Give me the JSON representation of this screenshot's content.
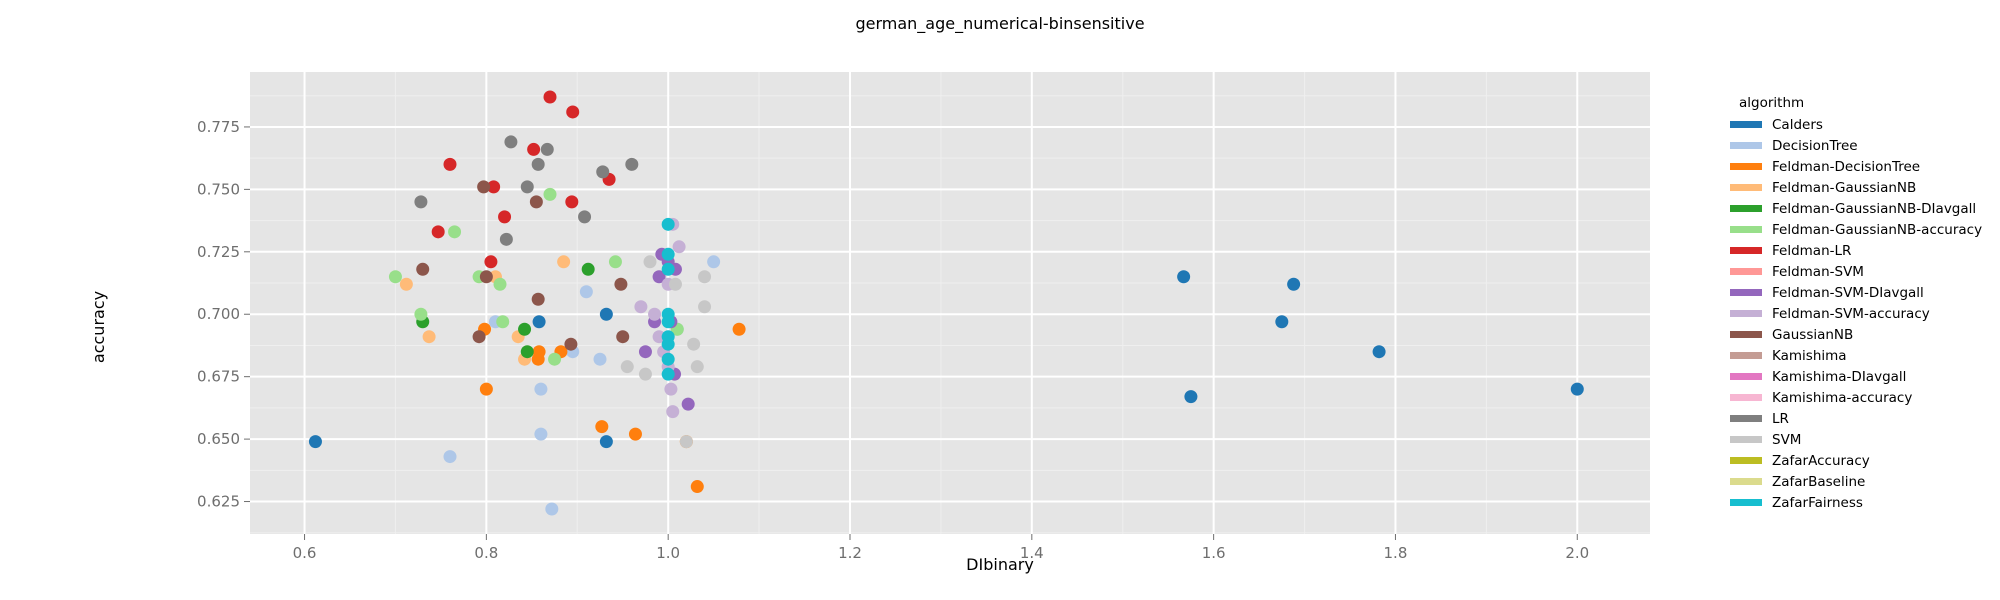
{
  "chart_data": {
    "type": "scatter",
    "title": "german_age_numerical-binsensitive",
    "xlabel": "DIbinary",
    "ylabel": "accuracy",
    "xlim": [
      0.54,
      2.08
    ],
    "ylim": [
      0.612,
      0.797
    ],
    "xticks": [
      "0.6",
      "0.8",
      "1.0",
      "1.2",
      "1.4",
      "1.6",
      "1.8",
      "2.0"
    ],
    "yticks": [
      "0.625",
      "0.650",
      "0.675",
      "0.700",
      "0.725",
      "0.750",
      "0.775"
    ],
    "grid": true,
    "legend_title": "algorithm",
    "legend_position": "right",
    "series": [
      {
        "name": "Calders",
        "color": "#1f77b4",
        "points": [
          [
            0.612,
            0.649
          ],
          [
            0.858,
            0.697
          ],
          [
            0.932,
            0.7
          ],
          [
            0.932,
            0.649
          ],
          [
            1.567,
            0.715
          ],
          [
            1.575,
            0.667
          ],
          [
            1.675,
            0.697
          ],
          [
            1.688,
            0.712
          ],
          [
            1.782,
            0.685
          ],
          [
            2.0,
            0.67
          ]
        ]
      },
      {
        "name": "DecisionTree",
        "color": "#aec7e8",
        "points": [
          [
            0.76,
            0.643
          ],
          [
            0.86,
            0.67
          ],
          [
            0.86,
            0.652
          ],
          [
            0.872,
            0.622
          ],
          [
            0.91,
            0.709
          ],
          [
            0.925,
            0.682
          ],
          [
            0.895,
            0.685
          ],
          [
            1.05,
            0.721
          ],
          [
            0.81,
            0.697
          ],
          [
            1.01,
            0.694
          ]
        ]
      },
      {
        "name": "Feldman-DecisionTree",
        "color": "#ff7f0e",
        "points": [
          [
            0.8,
            0.67
          ],
          [
            0.798,
            0.694
          ],
          [
            0.857,
            0.682
          ],
          [
            0.858,
            0.685
          ],
          [
            0.882,
            0.685
          ],
          [
            0.927,
            0.655
          ],
          [
            0.964,
            0.652
          ],
          [
            1.032,
            0.631
          ],
          [
            1.078,
            0.694
          ],
          [
            1.02,
            0.649
          ]
        ]
      },
      {
        "name": "Feldman-GaussianNB",
        "color": "#ffbb78",
        "points": [
          [
            0.712,
            0.712
          ],
          [
            0.737,
            0.691
          ],
          [
            0.835,
            0.691
          ],
          [
            0.842,
            0.682
          ],
          [
            0.885,
            0.721
          ],
          [
            0.81,
            0.715
          ],
          [
            1.02,
            0.649
          ]
        ]
      },
      {
        "name": "Feldman-GaussianNB-DIavgall",
        "color": "#2ca02c",
        "points": [
          [
            0.73,
            0.697
          ],
          [
            0.842,
            0.694
          ],
          [
            0.845,
            0.685
          ],
          [
            0.912,
            0.718
          ]
        ]
      },
      {
        "name": "Feldman-GaussianNB-accuracy",
        "color": "#98df8a",
        "points": [
          [
            0.7,
            0.715
          ],
          [
            0.728,
            0.7
          ],
          [
            0.765,
            0.733
          ],
          [
            0.792,
            0.715
          ],
          [
            0.815,
            0.712
          ],
          [
            0.818,
            0.697
          ],
          [
            0.87,
            0.748
          ],
          [
            0.875,
            0.682
          ],
          [
            0.942,
            0.721
          ],
          [
            1.01,
            0.694
          ]
        ]
      },
      {
        "name": "Feldman-LR",
        "color": "#d62728",
        "points": [
          [
            0.747,
            0.733
          ],
          [
            0.76,
            0.76
          ],
          [
            0.805,
            0.721
          ],
          [
            0.808,
            0.751
          ],
          [
            0.82,
            0.739
          ],
          [
            0.852,
            0.766
          ],
          [
            0.87,
            0.787
          ],
          [
            0.894,
            0.745
          ],
          [
            0.895,
            0.781
          ],
          [
            0.935,
            0.754
          ]
        ]
      },
      {
        "name": "Feldman-SVM",
        "color": "#ff9896",
        "points": []
      },
      {
        "name": "Feldman-SVM-DIavgall",
        "color": "#9467bd",
        "points": [
          [
            0.975,
            0.685
          ],
          [
            0.985,
            0.697
          ],
          [
            0.99,
            0.715
          ],
          [
            0.993,
            0.724
          ],
          [
            1.0,
            0.721
          ],
          [
            1.003,
            0.697
          ],
          [
            1.007,
            0.676
          ],
          [
            1.008,
            0.718
          ],
          [
            1.022,
            0.664
          ]
        ]
      },
      {
        "name": "Feldman-SVM-accuracy",
        "color": "#c5b0d5",
        "points": [
          [
            0.97,
            0.703
          ],
          [
            0.985,
            0.7
          ],
          [
            0.99,
            0.691
          ],
          [
            0.995,
            0.685
          ],
          [
            1.0,
            0.679
          ],
          [
            1.003,
            0.67
          ],
          [
            1.005,
            0.661
          ],
          [
            1.005,
            0.736
          ],
          [
            1.012,
            0.727
          ],
          [
            1.0,
            0.712
          ]
        ]
      },
      {
        "name": "GaussianNB",
        "color": "#8c564b",
        "points": [
          [
            0.73,
            0.718
          ],
          [
            0.792,
            0.691
          ],
          [
            0.8,
            0.715
          ],
          [
            0.797,
            0.751
          ],
          [
            0.855,
            0.745
          ],
          [
            0.857,
            0.706
          ],
          [
            0.893,
            0.688
          ],
          [
            0.948,
            0.712
          ],
          [
            0.95,
            0.691
          ]
        ]
      },
      {
        "name": "Kamishima",
        "color": "#c49c94",
        "points": []
      },
      {
        "name": "Kamishima-DIavgall",
        "color": "#e377c2",
        "points": []
      },
      {
        "name": "Kamishima-accuracy",
        "color": "#f7b6d2",
        "points": []
      },
      {
        "name": "LR",
        "color": "#7f7f7f",
        "points": [
          [
            0.728,
            0.745
          ],
          [
            0.822,
            0.73
          ],
          [
            0.827,
            0.769
          ],
          [
            0.845,
            0.751
          ],
          [
            0.857,
            0.76
          ],
          [
            0.867,
            0.766
          ],
          [
            0.908,
            0.739
          ],
          [
            0.928,
            0.757
          ],
          [
            0.96,
            0.76
          ]
        ]
      },
      {
        "name": "SVM",
        "color": "#c7c7c7",
        "points": [
          [
            0.955,
            0.679
          ],
          [
            0.975,
            0.676
          ],
          [
            0.98,
            0.721
          ],
          [
            1.008,
            0.712
          ],
          [
            1.028,
            0.688
          ],
          [
            1.032,
            0.679
          ],
          [
            1.04,
            0.715
          ],
          [
            1.04,
            0.703
          ],
          [
            1.02,
            0.649
          ]
        ]
      },
      {
        "name": "ZafarAccuracy",
        "color": "#bcbd22",
        "points": []
      },
      {
        "name": "ZafarBaseline",
        "color": "#dbdb8d",
        "points": []
      },
      {
        "name": "ZafarFairness",
        "color": "#17becf",
        "points": [
          [
            1.0,
            0.736
          ],
          [
            1.0,
            0.724
          ],
          [
            1.0,
            0.718
          ],
          [
            1.0,
            0.7
          ],
          [
            1.0,
            0.697
          ],
          [
            1.0,
            0.691
          ],
          [
            1.0,
            0.688
          ],
          [
            1.0,
            0.682
          ],
          [
            1.0,
            0.676
          ]
        ]
      }
    ]
  }
}
